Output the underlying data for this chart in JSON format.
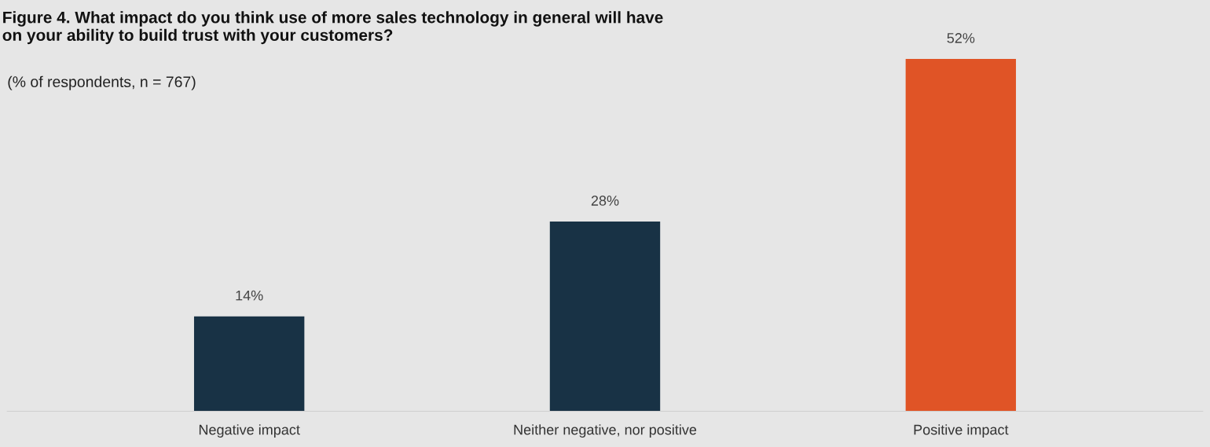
{
  "chart_data": {
    "type": "bar",
    "title": "Figure 4. What impact do you think use of more sales technology in general will have on your ability to build trust with your customers?",
    "subtitle": "(% of respondents, n = 767)",
    "categories": [
      "Negative impact",
      "Neither negative, nor positive",
      "Positive impact"
    ],
    "values": [
      14,
      28,
      52
    ],
    "colors": [
      "#183245",
      "#183245",
      "#e05426"
    ],
    "value_labels": [
      "14%",
      "28%",
      "52%"
    ],
    "grid": false,
    "legend": false
  }
}
